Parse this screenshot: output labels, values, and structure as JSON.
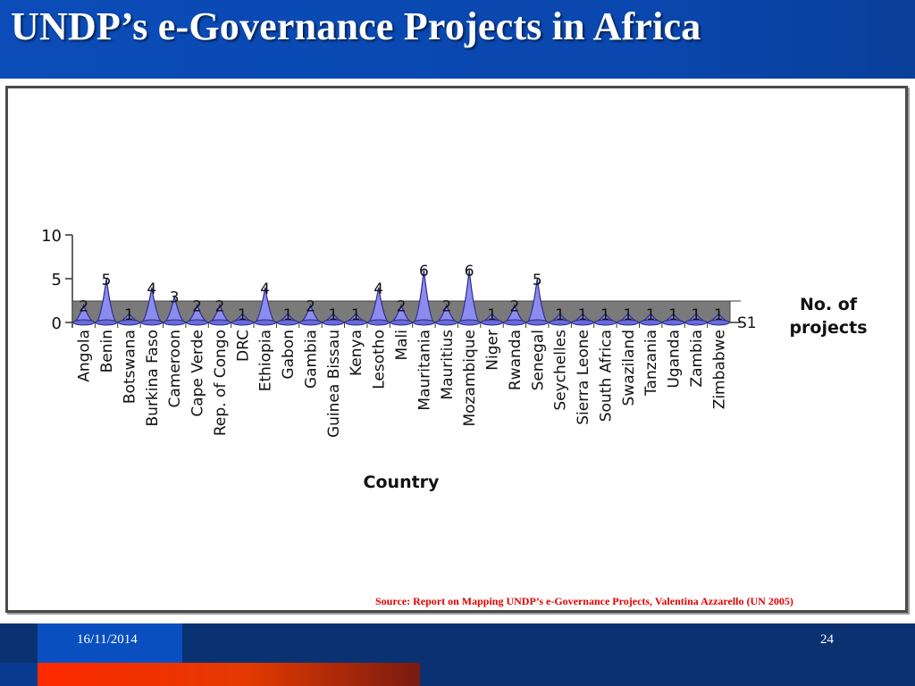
{
  "slide": {
    "title": "UNDP’s e-Governance Projects in Africa",
    "source": "Source:  Report on Mapping UNDP’s e-Governance Projects, Valentina Azzarello (UN 2005)",
    "date": "16/11/2014",
    "page_number": "24"
  },
  "colors": {
    "header_blue": "#0b4cb8",
    "footer_navy": "#0a3270",
    "accent_orange": "#ff2a00",
    "bar_fill": "#8c8cf0",
    "bar_stroke": "#2a2a8a",
    "floor_gray": "#7a7a7a",
    "source_red": "#e00000"
  },
  "chart_data": {
    "type": "bar",
    "style": "3d-cone",
    "categories": [
      "Angola",
      "Benin",
      "Botswana",
      "Burkina Faso",
      "Cameroon",
      "Cape Verde",
      "Rep. of Congo",
      "DRC",
      "Ethiopia",
      "Gabon",
      "Gambia",
      "Guinea Bissau",
      "Kenya",
      "Lesotho",
      "Mali",
      "Mauritania",
      "Mauritius",
      "Mozambique",
      "Niger",
      "Rwanda",
      "Senegal",
      "Seychelles",
      "Sierra Leone",
      "South Africa",
      "Swaziland",
      "Tanzania",
      "Uganda",
      "Zambia",
      "Zimbabwe"
    ],
    "series": [
      {
        "name": "S1",
        "values": [
          2,
          5,
          1,
          4,
          3,
          2,
          2,
          1,
          4,
          1,
          2,
          1,
          1,
          4,
          2,
          6,
          2,
          6,
          1,
          2,
          5,
          1,
          1,
          1,
          1,
          1,
          1,
          1,
          1
        ]
      }
    ],
    "xlabel": "Country",
    "ylabel": "No. of projects",
    "ylim": [
      0,
      10
    ],
    "yticks": [
      0,
      5,
      10
    ],
    "legend_position": "right",
    "grid": false
  }
}
